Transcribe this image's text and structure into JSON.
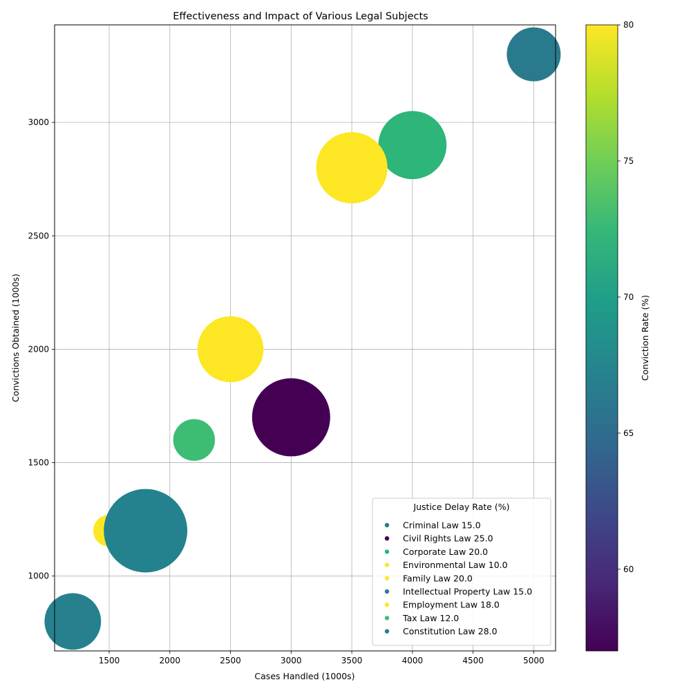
{
  "chart_data": {
    "type": "scatter",
    "title": "Effectiveness and Impact of Various Legal Subjects",
    "xlabel": "Cases Handled (1000s)",
    "ylabel": "Convictions Obtained (1000s)",
    "xlim": [
      1050,
      5180
    ],
    "ylim": [
      670,
      3430
    ],
    "xticks": [
      1500,
      2000,
      2500,
      3000,
      3500,
      4000,
      4500,
      5000
    ],
    "yticks": [
      1000,
      1500,
      2000,
      2500,
      3000
    ],
    "grid": true,
    "colorbar": {
      "label": "Conviction Rate (%)",
      "min": 57,
      "max": 80,
      "ticks": [
        60,
        65,
        70,
        75,
        80
      ],
      "colormap": [
        "#440154",
        "#482878",
        "#3e4989",
        "#31688e",
        "#26828e",
        "#1f9e89",
        "#35b779",
        "#6ece58",
        "#b5de2b",
        "#fde725"
      ]
    },
    "legend": {
      "title": "Justice Delay Rate (%)",
      "placement": "lower right"
    },
    "points": [
      {
        "subject": "Criminal Law",
        "delay": "15.0",
        "x": 5000,
        "y": 3300,
        "color": "#2a7a8e",
        "size": 1
      },
      {
        "subject": "Civil Rights Law",
        "delay": "25.0",
        "x": 3000,
        "y": 1700,
        "color": "#440154",
        "size": 2.1
      },
      {
        "subject": "Corporate Law",
        "delay": "20.0",
        "x": 4000,
        "y": 2900,
        "color": "#2db57a",
        "size": 1.6
      },
      {
        "subject": "Environmental Law",
        "delay": "10.0",
        "x": 1500,
        "y": 1200,
        "color": "#fde725",
        "size": 0.35
      },
      {
        "subject": "Family Law",
        "delay": "20.0",
        "x": 2500,
        "y": 2000,
        "color": "#fde725",
        "size": 1.5
      },
      {
        "subject": "Intellectual Property Law",
        "delay": "15.0",
        "x": 1200,
        "y": 800,
        "color": "#27808e",
        "size": 1.1
      },
      {
        "subject": "Employment Law",
        "delay": "18.0",
        "x": 3500,
        "y": 2800,
        "color": "#fde725",
        "size": 1.75
      },
      {
        "subject": "Tax Law",
        "delay": "12.0",
        "x": 2200,
        "y": 1600,
        "color": "#3dbc74",
        "size": 0.6
      },
      {
        "subject": "Constitution Law",
        "delay": "28.0",
        "x": 1800,
        "y": 1200,
        "color": "#23828d",
        "size": 2.4
      }
    ]
  }
}
